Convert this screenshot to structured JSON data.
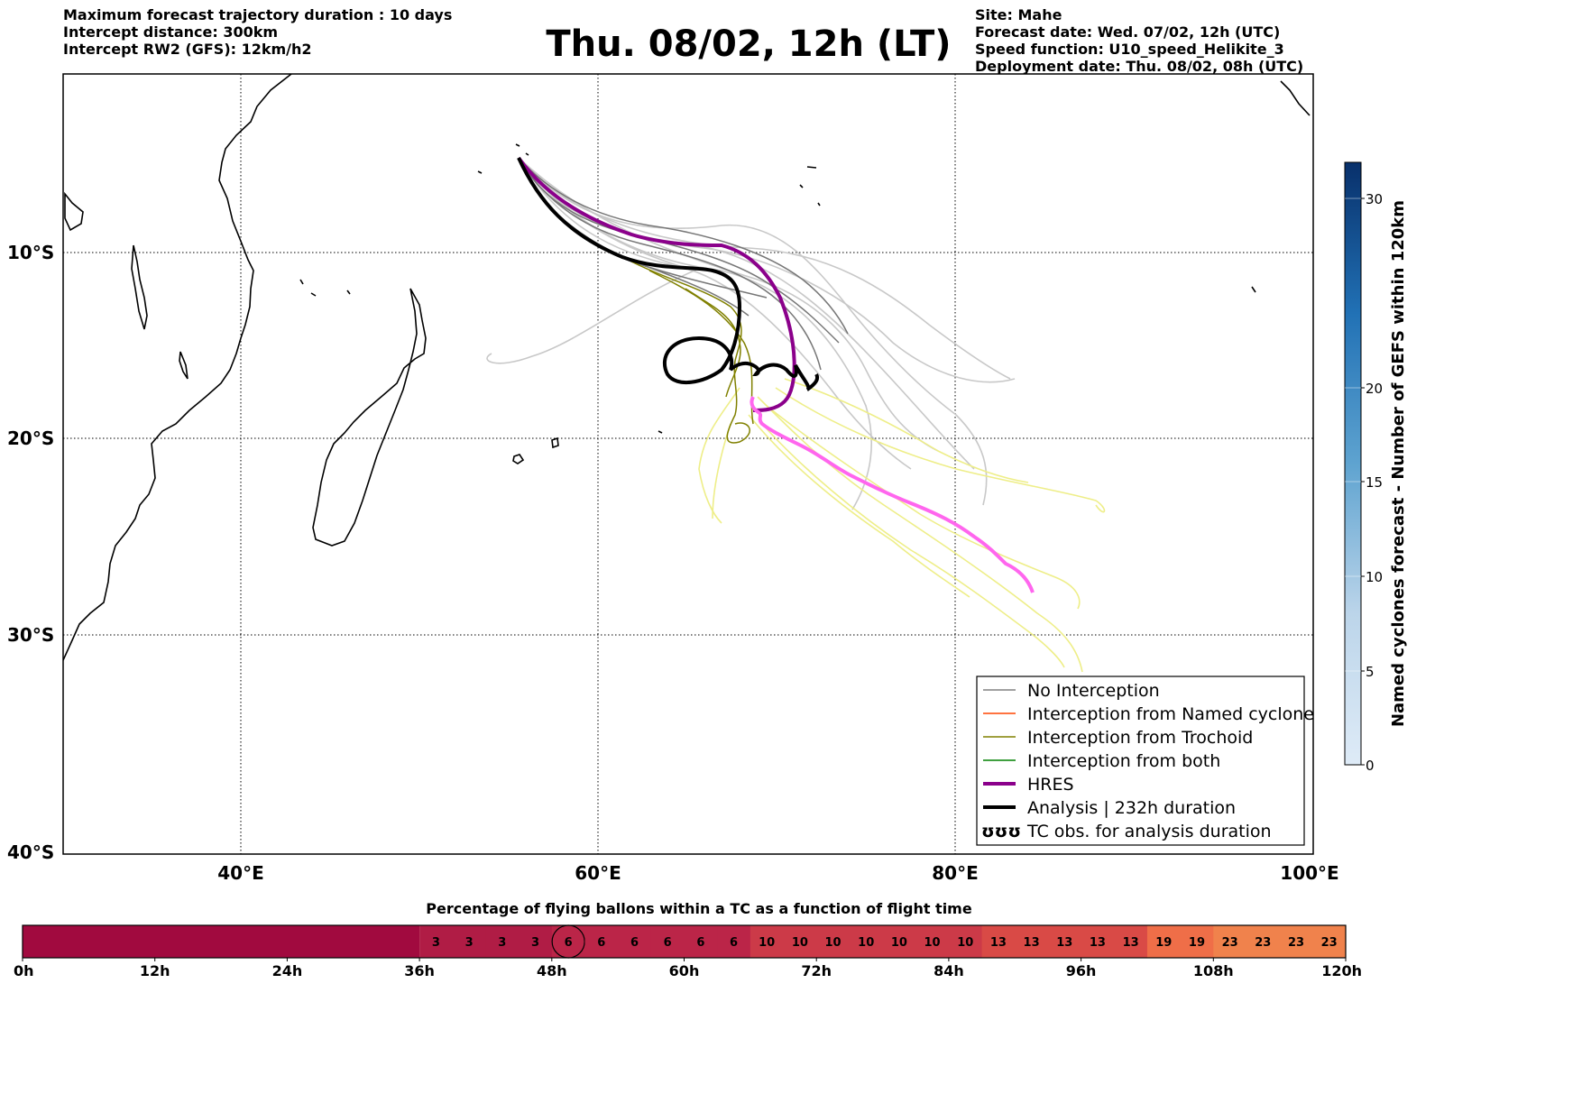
{
  "header_left": {
    "line1": "Maximum forecast trajectory duration : 10 days",
    "line2": "Intercept distance: 300km",
    "line3": "Intercept RW2 (GFS):  12km/h2"
  },
  "title": "Thu. 08/02, 12h (LT)",
  "header_right": {
    "line1": "Site: Mahe",
    "line2": "Forecast date: Wed. 07/02, 12h (UTC)",
    "line3": "Speed function: U10_speed_Helikite_3",
    "line4": "Deployment date: Thu. 08/02, 08h (UTC)"
  },
  "map": {
    "lon_range": [
      30,
      100
    ],
    "lat_range": [
      -1,
      -40
    ],
    "lat_labels": [
      "10°S",
      "20°S",
      "30°S",
      "40°S"
    ],
    "lon_labels": [
      "40°E",
      "60°E",
      "80°E",
      "100°E"
    ],
    "colors": {
      "no_interception": "#808080",
      "named_cyclone": "#ff4500",
      "trochoid": "#808000",
      "both": "#008000",
      "hres": "#8b008b",
      "analysis": "#000000",
      "tc_obs": "#ff66ee",
      "ensemble_light": "#c8c8c8",
      "ensemble_yellow": "#eeee88"
    }
  },
  "legend": {
    "items": [
      "No Interception",
      "Interception from Named cyclone",
      "Interception from Trochoid",
      "Interception from both",
      "HRES",
      "Analysis | 232h duration",
      "TC obs. for analysis duration"
    ],
    "tc_symbol": "ʊʊʊ"
  },
  "colorbar": {
    "label": "Named cyclones forecast - Number of GEFS within 120km",
    "ticks": [
      "0",
      "5",
      "10",
      "15",
      "20",
      "30"
    ]
  },
  "bottom_bar": {
    "title": "Percentage of flying ballons within a TC as a function of flight time",
    "values": [
      "3",
      "3",
      "3",
      "3",
      "6",
      "6",
      "6",
      "6",
      "6",
      "6",
      "10",
      "10",
      "10",
      "10",
      "10",
      "10",
      "10",
      "13",
      "13",
      "13",
      "13",
      "13",
      "19",
      "19",
      "23",
      "23",
      "23",
      "23"
    ],
    "highlighted_index": 4,
    "ticks": [
      "0h",
      "12h",
      "24h",
      "36h",
      "48h",
      "60h",
      "72h",
      "84h",
      "96h",
      "108h",
      "120h"
    ]
  }
}
